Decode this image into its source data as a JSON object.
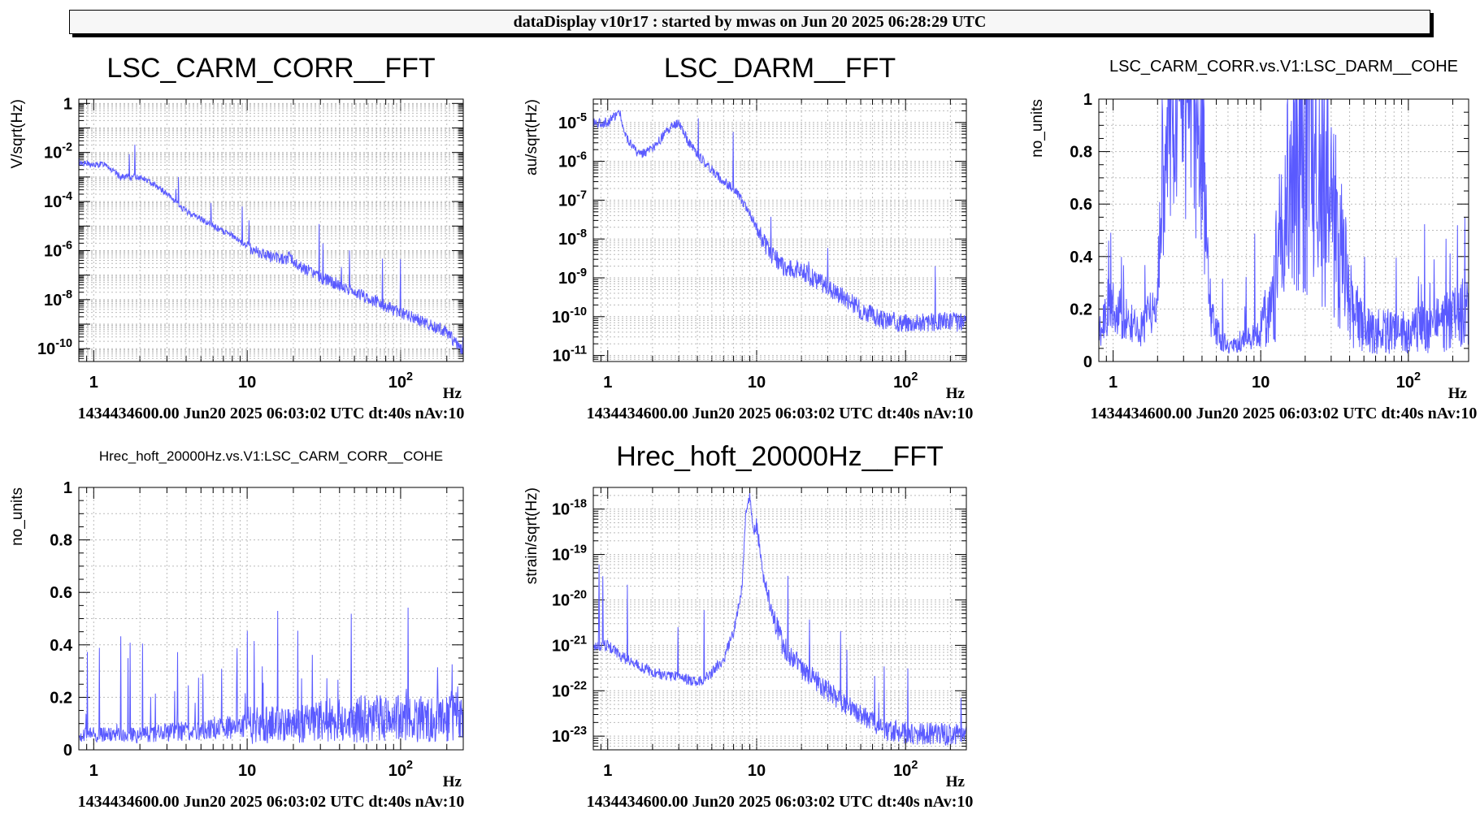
{
  "header": {
    "title": "dataDisplay v10r17 : started by mwas on Jun 20 2025 06:28:29 UTC"
  },
  "colors": {
    "trace": "#5a5aff",
    "grid": "#bbbbbb",
    "axis": "#000000"
  },
  "chart_data": [
    {
      "type": "line",
      "title": "LSC_CARM_CORR__FFT",
      "xlabel": "Hz",
      "ylabel": "V/sqrt(Hz)",
      "xscale": "log",
      "yscale": "log",
      "xlim": [
        0.8,
        256
      ],
      "ylim": [
        3e-11,
        1.5
      ],
      "xticks": [
        "1",
        "10",
        "10^2"
      ],
      "yticks": [
        "1",
        "10^-2",
        "10^-4",
        "10^-6",
        "10^-8",
        "10^-10"
      ],
      "grid": true,
      "footer": "1434434600.00 Jun20 2025 06:03:02 UTC dt:40s nAv:10",
      "series": [
        {
          "x": [
            0.8,
            1.0,
            1.2,
            1.3,
            1.5,
            2.0,
            2.5,
            3,
            4,
            5,
            6,
            7,
            8,
            10,
            12,
            15,
            18,
            19,
            20,
            25,
            30,
            40,
            50,
            70,
            100,
            150,
            200,
            256
          ],
          "y": [
            0.004,
            0.003,
            0.0035,
            0.002,
            0.001,
            0.001,
            0.0005,
            0.0002,
            4e-05,
            2e-05,
            1e-05,
            6e-06,
            4e-06,
            1.5e-06,
            8e-07,
            5e-07,
            4e-07,
            8e-07,
            3e-07,
            1.5e-07,
            8e-08,
            4e-08,
            2e-08,
            8e-09,
            3e-09,
            1e-09,
            5e-10,
            7e-11
          ]
        }
      ]
    },
    {
      "type": "line",
      "title": "LSC_DARM__FFT",
      "xlabel": "Hz",
      "ylabel": "au/sqrt(Hz)",
      "xscale": "log",
      "yscale": "log",
      "xlim": [
        0.8,
        256
      ],
      "ylim": [
        7e-12,
        4e-05
      ],
      "xticks": [
        "1",
        "10",
        "10^2"
      ],
      "yticks": [
        "10^-5",
        "10^-6",
        "10^-7",
        "10^-8",
        "10^-9",
        "10^-10",
        "10^-11"
      ],
      "grid": true,
      "footer": "1434434600.00 Jun20 2025 06:03:02 UTC dt:40s nAv:10",
      "series": [
        {
          "x": [
            0.8,
            1.0,
            1.2,
            1.3,
            1.6,
            2.0,
            2.5,
            3.0,
            3.5,
            4,
            5,
            6,
            7,
            8,
            10,
            12,
            15,
            20,
            30,
            40,
            50,
            70,
            100,
            150,
            200,
            256
          ],
          "y": [
            1e-05,
            1e-05,
            2e-05,
            5e-06,
            1.5e-06,
            2e-06,
            6e-06,
            1e-05,
            3e-06,
            1.5e-06,
            6e-07,
            3e-07,
            2e-07,
            1e-07,
            2e-08,
            5e-09,
            2e-09,
            1.5e-09,
            6e-10,
            3e-10,
            1.5e-10,
            8e-11,
            7e-11,
            7e-11,
            8e-11,
            6e-11
          ]
        }
      ]
    },
    {
      "type": "line",
      "title": "LSC_CARM_CORR.vs.V1:LSC_DARM__COHE",
      "xlabel": "Hz",
      "ylabel": "no_units",
      "xscale": "log",
      "yscale": "linear",
      "xlim": [
        0.8,
        256
      ],
      "ylim": [
        0,
        1
      ],
      "xticks": [
        "1",
        "10",
        "10^2"
      ],
      "yticks": [
        "0",
        "0.2",
        "0.4",
        "0.6",
        "0.8",
        "1"
      ],
      "grid": true,
      "footer": "1434434600.00 Jun20 2025 06:03:02 UTC dt:40s nAv:10",
      "series": [
        {
          "x": [
            0.8,
            1.0,
            1.2,
            1.5,
            2.0,
            2.2,
            2.5,
            3.0,
            3.5,
            4.0,
            4.5,
            5,
            6,
            8,
            10,
            12,
            15,
            18,
            20,
            25,
            30,
            40,
            50,
            70,
            100,
            150,
            256
          ],
          "y": [
            0.1,
            0.2,
            0.15,
            0.1,
            0.2,
            0.8,
            0.95,
            0.97,
            0.9,
            0.8,
            0.2,
            0.1,
            0.05,
            0.08,
            0.1,
            0.2,
            0.5,
            0.85,
            0.9,
            0.7,
            0.5,
            0.2,
            0.1,
            0.1,
            0.1,
            0.12,
            0.15
          ]
        }
      ]
    },
    {
      "type": "line",
      "title": "Hrec_hoft_20000Hz.vs.V1:LSC_CARM_CORR__COHE",
      "xlabel": "Hz",
      "ylabel": "no_units",
      "xscale": "log",
      "yscale": "linear",
      "xlim": [
        0.8,
        256
      ],
      "ylim": [
        0,
        1
      ],
      "xticks": [
        "1",
        "10",
        "10^2"
      ],
      "yticks": [
        "0",
        "0.2",
        "0.4",
        "0.6",
        "0.8",
        "1"
      ],
      "grid": true,
      "footer": "1434434600.00 Jun20 2025 06:03:02 UTC dt:40s nAv:10",
      "series": [
        {
          "x": [
            0.8,
            1,
            2,
            3,
            5,
            8,
            10,
            15,
            20,
            30,
            50,
            80,
            100,
            150,
            200,
            256
          ],
          "y": [
            0.05,
            0.05,
            0.05,
            0.06,
            0.07,
            0.08,
            0.08,
            0.08,
            0.08,
            0.09,
            0.1,
            0.1,
            0.1,
            0.1,
            0.11,
            0.12
          ]
        }
      ]
    },
    {
      "type": "line",
      "title": "Hrec_hoft_20000Hz__FFT",
      "xlabel": "Hz",
      "ylabel": "strain/sqrt(Hz)",
      "xscale": "log",
      "yscale": "log",
      "xlim": [
        0.8,
        256
      ],
      "ylim": [
        5e-24,
        3e-18
      ],
      "xticks": [
        "1",
        "10",
        "10^2"
      ],
      "yticks": [
        "10^-18",
        "10^-19",
        "10^-20",
        "10^-21",
        "10^-22",
        "10^-23"
      ],
      "grid": true,
      "footer": "1434434600.00 Jun20 2025 06:03:02 UTC dt:40s nAv:10",
      "series": [
        {
          "x": [
            0.8,
            1.0,
            1.2,
            1.5,
            2.0,
            3.0,
            4.0,
            5.0,
            6.0,
            7.0,
            8.0,
            8.5,
            9.0,
            9.5,
            10,
            11,
            12,
            15,
            20,
            30,
            40,
            50,
            70,
            100,
            150,
            200,
            256
          ],
          "y": [
            1e-21,
            1e-21,
            6e-22,
            4e-22,
            2.5e-22,
            2e-22,
            1.5e-22,
            2.5e-22,
            5e-22,
            2e-21,
            2e-20,
            1e-18,
            2e-18,
            3e-19,
            5e-19,
            5e-20,
            1e-20,
            1e-21,
            3e-22,
            1e-22,
            5e-23,
            3e-23,
            1.5e-23,
            1.2e-23,
            1.1e-23,
            1.1e-23,
            1e-23
          ]
        }
      ]
    }
  ]
}
